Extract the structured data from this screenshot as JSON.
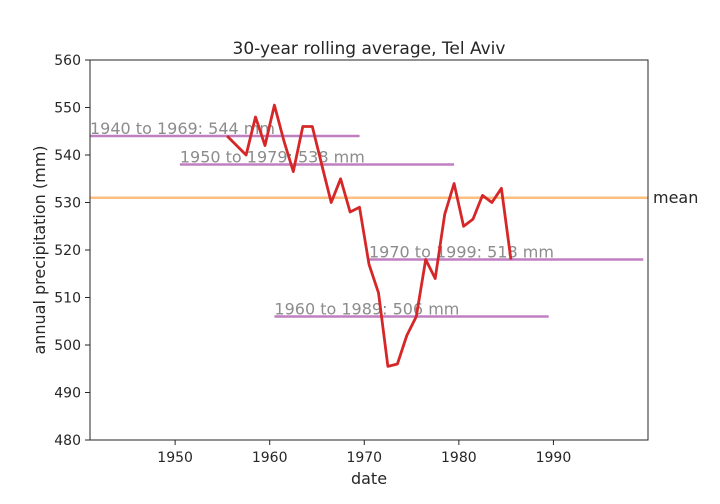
{
  "chart_data": {
    "type": "line",
    "title": "30-year rolling average, Tel Aviv",
    "xlabel": "date",
    "ylabel": "annual precipitation (mm)",
    "xlim": [
      1941,
      2000
    ],
    "ylim": [
      480,
      560
    ],
    "xticks": [
      1950,
      1960,
      1970,
      1980,
      1990
    ],
    "yticks": [
      480,
      490,
      500,
      510,
      520,
      530,
      540,
      550,
      560
    ],
    "grid": false,
    "colors": {
      "rolling": "#d62728",
      "period": "#c07fc0",
      "mean": "#ffbf80",
      "period_text": "#8c8c8c",
      "axis": "#262626"
    },
    "rolling_average": {
      "x": [
        1955.5,
        1956.5,
        1957.5,
        1958.5,
        1959.5,
        1960.5,
        1961.5,
        1962.5,
        1963.5,
        1964.5,
        1965.5,
        1966.5,
        1967.5,
        1968.5,
        1969.5,
        1970.5,
        1971.5,
        1972.5,
        1973.5,
        1974.5,
        1975.5,
        1976.5,
        1977.5,
        1978.5,
        1979.5,
        1980.5,
        1981.5,
        1982.5,
        1983.5,
        1984.5,
        1985.5
      ],
      "y": [
        544,
        542,
        540,
        548,
        542,
        550.5,
        543,
        536.5,
        546,
        546,
        538,
        530,
        535,
        528,
        529,
        517,
        511,
        495.5,
        496,
        502,
        506,
        518,
        514,
        527.5,
        534,
        525,
        526.5,
        531.5,
        530,
        533,
        518
      ]
    },
    "mean": {
      "value": 531,
      "label": "mean"
    },
    "periods": [
      {
        "start": 1940,
        "end": 1969,
        "value": 544,
        "label": "1940 to 1969:  544 mm"
      },
      {
        "start": 1950,
        "end": 1979,
        "value": 538,
        "label": "1950 to 1979:  538 mm"
      },
      {
        "start": 1960,
        "end": 1989,
        "value": 506,
        "label": "1960 to 1989:  506 mm"
      },
      {
        "start": 1970,
        "end": 1999,
        "value": 518,
        "label": "1970 to 1999:  518 mm"
      }
    ]
  }
}
